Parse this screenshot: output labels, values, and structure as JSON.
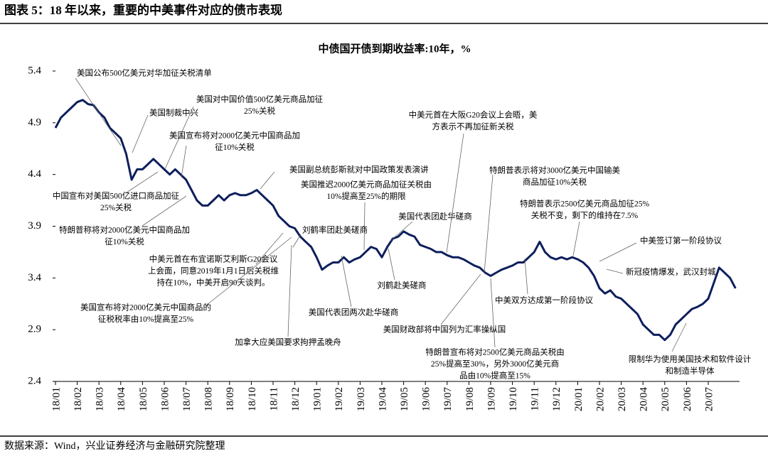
{
  "header": {
    "title": "图表 5：18 年以来，重要的中美事件对应的债市表现"
  },
  "chart_data": {
    "type": "line",
    "title": "中债国开债到期收益率:10年，%",
    "xticks": [
      "18/01",
      "18/02",
      "18/03",
      "18/04",
      "18/05",
      "18/06",
      "18/07",
      "18/08",
      "18/09",
      "18/10",
      "18/11",
      "18/12",
      "19/01",
      "19/02",
      "19/03",
      "19/04",
      "19/05",
      "19/06",
      "19/07",
      "19/08",
      "19/09",
      "19/10",
      "19/11",
      "19/12",
      "20/01",
      "20/02",
      "20/03",
      "20/04",
      "20/05",
      "20/06",
      "20/07"
    ],
    "ylim": [
      2.4,
      5.4
    ],
    "yticks": [
      2.4,
      2.9,
      3.4,
      3.9,
      4.4,
      4.9,
      5.4
    ],
    "series": [
      {
        "name": "中债国开债到期收益率:10年",
        "color": "#0d1f5c",
        "values": [
          4.85,
          4.95,
          5.0,
          5.05,
          5.1,
          5.12,
          5.08,
          5.07,
          5.0,
          4.95,
          4.85,
          4.8,
          4.75,
          4.6,
          4.35,
          4.45,
          4.45,
          4.5,
          4.55,
          4.5,
          4.45,
          4.4,
          4.45,
          4.4,
          4.35,
          4.25,
          4.15,
          4.1,
          4.1,
          4.15,
          4.2,
          4.15,
          4.2,
          4.22,
          4.2,
          4.2,
          4.22,
          4.25,
          4.2,
          4.15,
          4.1,
          4.0,
          3.95,
          3.9,
          3.88,
          3.8,
          3.75,
          3.7,
          3.6,
          3.48,
          3.52,
          3.55,
          3.55,
          3.6,
          3.55,
          3.58,
          3.6,
          3.65,
          3.7,
          3.68,
          3.6,
          3.7,
          3.78,
          3.8,
          3.85,
          3.82,
          3.8,
          3.72,
          3.7,
          3.68,
          3.65,
          3.65,
          3.62,
          3.6,
          3.6,
          3.58,
          3.55,
          3.52,
          3.5,
          3.45,
          3.42,
          3.45,
          3.48,
          3.5,
          3.52,
          3.55,
          3.55,
          3.6,
          3.65,
          3.75,
          3.65,
          3.6,
          3.58,
          3.6,
          3.58,
          3.6,
          3.58,
          3.55,
          3.5,
          3.42,
          3.3,
          3.25,
          3.28,
          3.22,
          3.2,
          3.15,
          3.1,
          3.05,
          2.95,
          2.9,
          2.85,
          2.85,
          2.8,
          2.85,
          2.95,
          3.0,
          3.05,
          3.1,
          3.12,
          3.15,
          3.2,
          3.35,
          3.5,
          3.45,
          3.4,
          3.3
        ]
      }
    ],
    "annotations": [
      [
        "美国公布500亿美元对华加征关税清单"
      ],
      [
        "美国制裁中兴"
      ],
      [
        "美国对中国价值500亿美元商品加征",
        "25%关税"
      ],
      [
        "美国宣布将对2000亿美元中国商品加",
        "征10%关税"
      ],
      [
        "中国宣布对美国500亿进口商品加征",
        "25%关税"
      ],
      [
        "特朗普称将对2000亿美元中国商品加",
        "征10%关税"
      ],
      [
        "中美元首在布宜诺斯艾利斯G20会议",
        "上会面，同意2019年1月1日后关税维",
        "持在10%，中美开启90天谈判。"
      ],
      [
        "美国宣布将对2000亿美元中国商品的",
        "征税税率由10%提高至25%"
      ],
      [
        "加拿大应美国要求拘押孟晚舟"
      ],
      [
        "美国副总统彭斯就对中国政策发表演讲"
      ],
      [
        "美国推迟2000亿美元商品加征关税由",
        "10%提高至25%的期限"
      ],
      [
        "刘鹤率团赴美磋商"
      ],
      [
        "美国代表团赴华磋商"
      ],
      [
        "刘鹤赴美磋商"
      ],
      [
        "美国代表团两次赴华磋商"
      ],
      [
        "中美元首在大阪G20会议上会晤，美",
        "方表示不再加征新关税"
      ],
      [
        "特朗普表示将对3000亿美元中国输美",
        "商品加征10%关税"
      ],
      [
        "特朗普表示2500亿美元商品加征25%",
        "关税不变，剩下的维持在7.5%"
      ],
      [
        "中美签订第一阶段协议"
      ],
      [
        "新冠疫情爆发，武汉封城"
      ],
      [
        "中美双方达成第一阶段协议"
      ],
      [
        "美国财政部将中国列为汇率操纵国"
      ],
      [
        "特朗普宣布将对2500亿美元商品关税由",
        "25%提高至30%，另外3000亿美元商",
        "品由10%提高至15%"
      ],
      [
        "限制华为使用美国技术和软件设计",
        "和制造半导体"
      ]
    ]
  },
  "footer": {
    "source": "数据来源：Wind，兴业证券经济与金融研究院整理"
  }
}
